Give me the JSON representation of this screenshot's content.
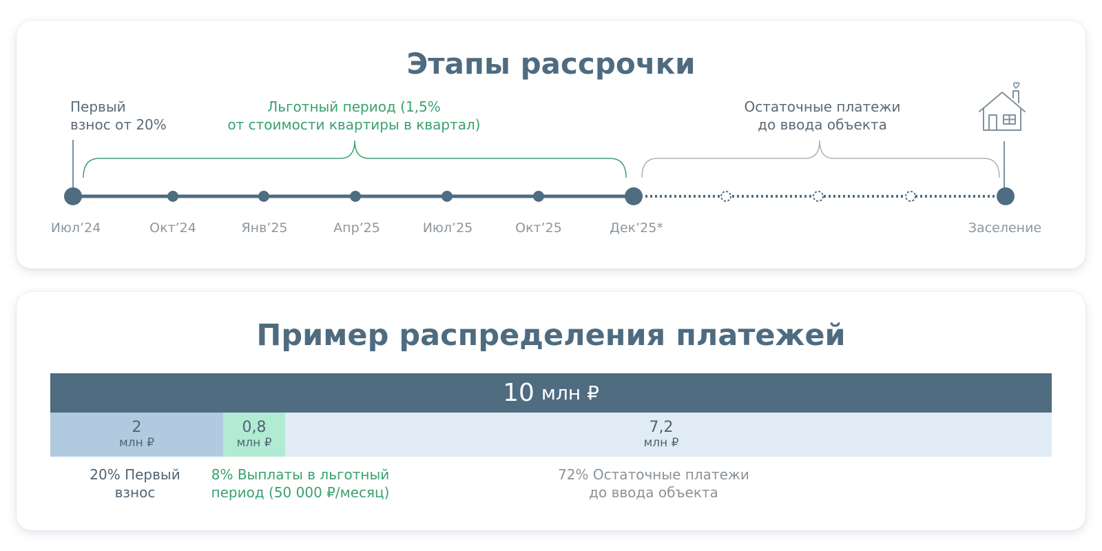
{
  "timeline": {
    "title": "Этапы рассрочки",
    "first_payment_label": "Первый\nвзнос от 20%",
    "first_payment_line1": "Первый",
    "first_payment_line2": "взнос от 20%",
    "grace_line1": "Льготный период (1,5%",
    "grace_line2": "от стоимости квартиры в квартал)",
    "remaining_line1": "Остаточные платежи",
    "remaining_line2": "до ввода объекта",
    "ticks": [
      "Июл’24",
      "Окт’24",
      "Янв’25",
      "Апр’25",
      "Июл’25",
      "Окт’25",
      "Дек’25*",
      "Заселение"
    ],
    "icon": "house-icon",
    "colors": {
      "line": "#4f6c80",
      "grace": "#3aa070",
      "muted": "#a9b3b9"
    }
  },
  "distribution": {
    "title": "Пример распределения платежей",
    "total_value": "10",
    "total_unit": "млн ₽",
    "segments": [
      {
        "value": "2",
        "unit": "млн ₽",
        "share": 0.2
      },
      {
        "value": "0,8",
        "unit": "млн ₽",
        "share": 0.08
      },
      {
        "value": "7,2",
        "unit": "млн ₽",
        "share": 0.72
      }
    ],
    "notes": [
      {
        "line1": "20% Первый",
        "line2": "взнос"
      },
      {
        "line1": "8% Выплаты в льготный",
        "line2": "период  (50 000 ₽/месяц)"
      },
      {
        "line1": "72% Остаточные платежи",
        "line2": "до ввода объекта"
      }
    ],
    "colors": {
      "total": "#4f6c80",
      "first": "#b2cae0",
      "grace": "#b2ebd3",
      "rest": "#e1ebf5"
    }
  }
}
